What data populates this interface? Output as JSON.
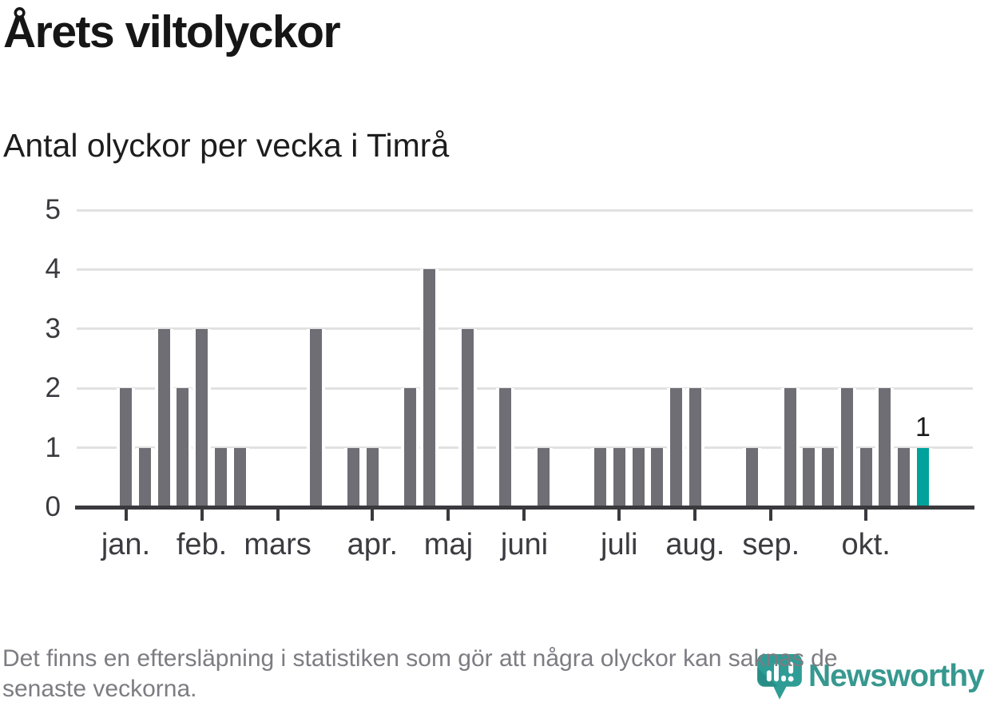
{
  "chart_data": {
    "type": "bar",
    "title": "Årets viltolyckor",
    "subtitle": "Antal olyckor per vecka i Timrå",
    "x_unit": "vecka (weekly bars, jan.–okt.)",
    "values": [
      2,
      1,
      3,
      2,
      3,
      1,
      1,
      0,
      0,
      0,
      3,
      0,
      1,
      1,
      0,
      2,
      4,
      0,
      3,
      0,
      2,
      0,
      1,
      0,
      0,
      1,
      1,
      1,
      1,
      2,
      2,
      0,
      0,
      1,
      0,
      2,
      1,
      1,
      2,
      1,
      2,
      1,
      1
    ],
    "month_ticks": [
      {
        "label": "jan.",
        "week_index": 0
      },
      {
        "label": "feb.",
        "week_index": 4
      },
      {
        "label": "mars",
        "week_index": 8
      },
      {
        "label": "apr.",
        "week_index": 13
      },
      {
        "label": "maj",
        "week_index": 17
      },
      {
        "label": "juni",
        "week_index": 21
      },
      {
        "label": "juli",
        "week_index": 26
      },
      {
        "label": "aug.",
        "week_index": 30
      },
      {
        "label": "sep.",
        "week_index": 34
      },
      {
        "label": "okt.",
        "week_index": 39
      }
    ],
    "y_ticks": [
      0,
      1,
      2,
      3,
      4,
      5
    ],
    "ylim": [
      0,
      5
    ],
    "grid": "horizontal",
    "legend": "none",
    "annotation": {
      "week_index": 42,
      "label": "1"
    },
    "colors": {
      "bar": "#6e6e74",
      "highlight": "#00a29b",
      "grid": "#e1e1e2",
      "axis": "#3a3a3e",
      "tick_label": "#3b3b40",
      "annotation": "#1a1a1a"
    }
  },
  "footer": {
    "lines": [
      "Det finns en eftersläpning i statistiken som gör att några olyckor kan saknas de",
      "senaste veckorna."
    ]
  },
  "logo": {
    "wordmark": "Newsworthy",
    "icon": "newsworthy-chart-pin-icon",
    "color": "#37988f"
  }
}
